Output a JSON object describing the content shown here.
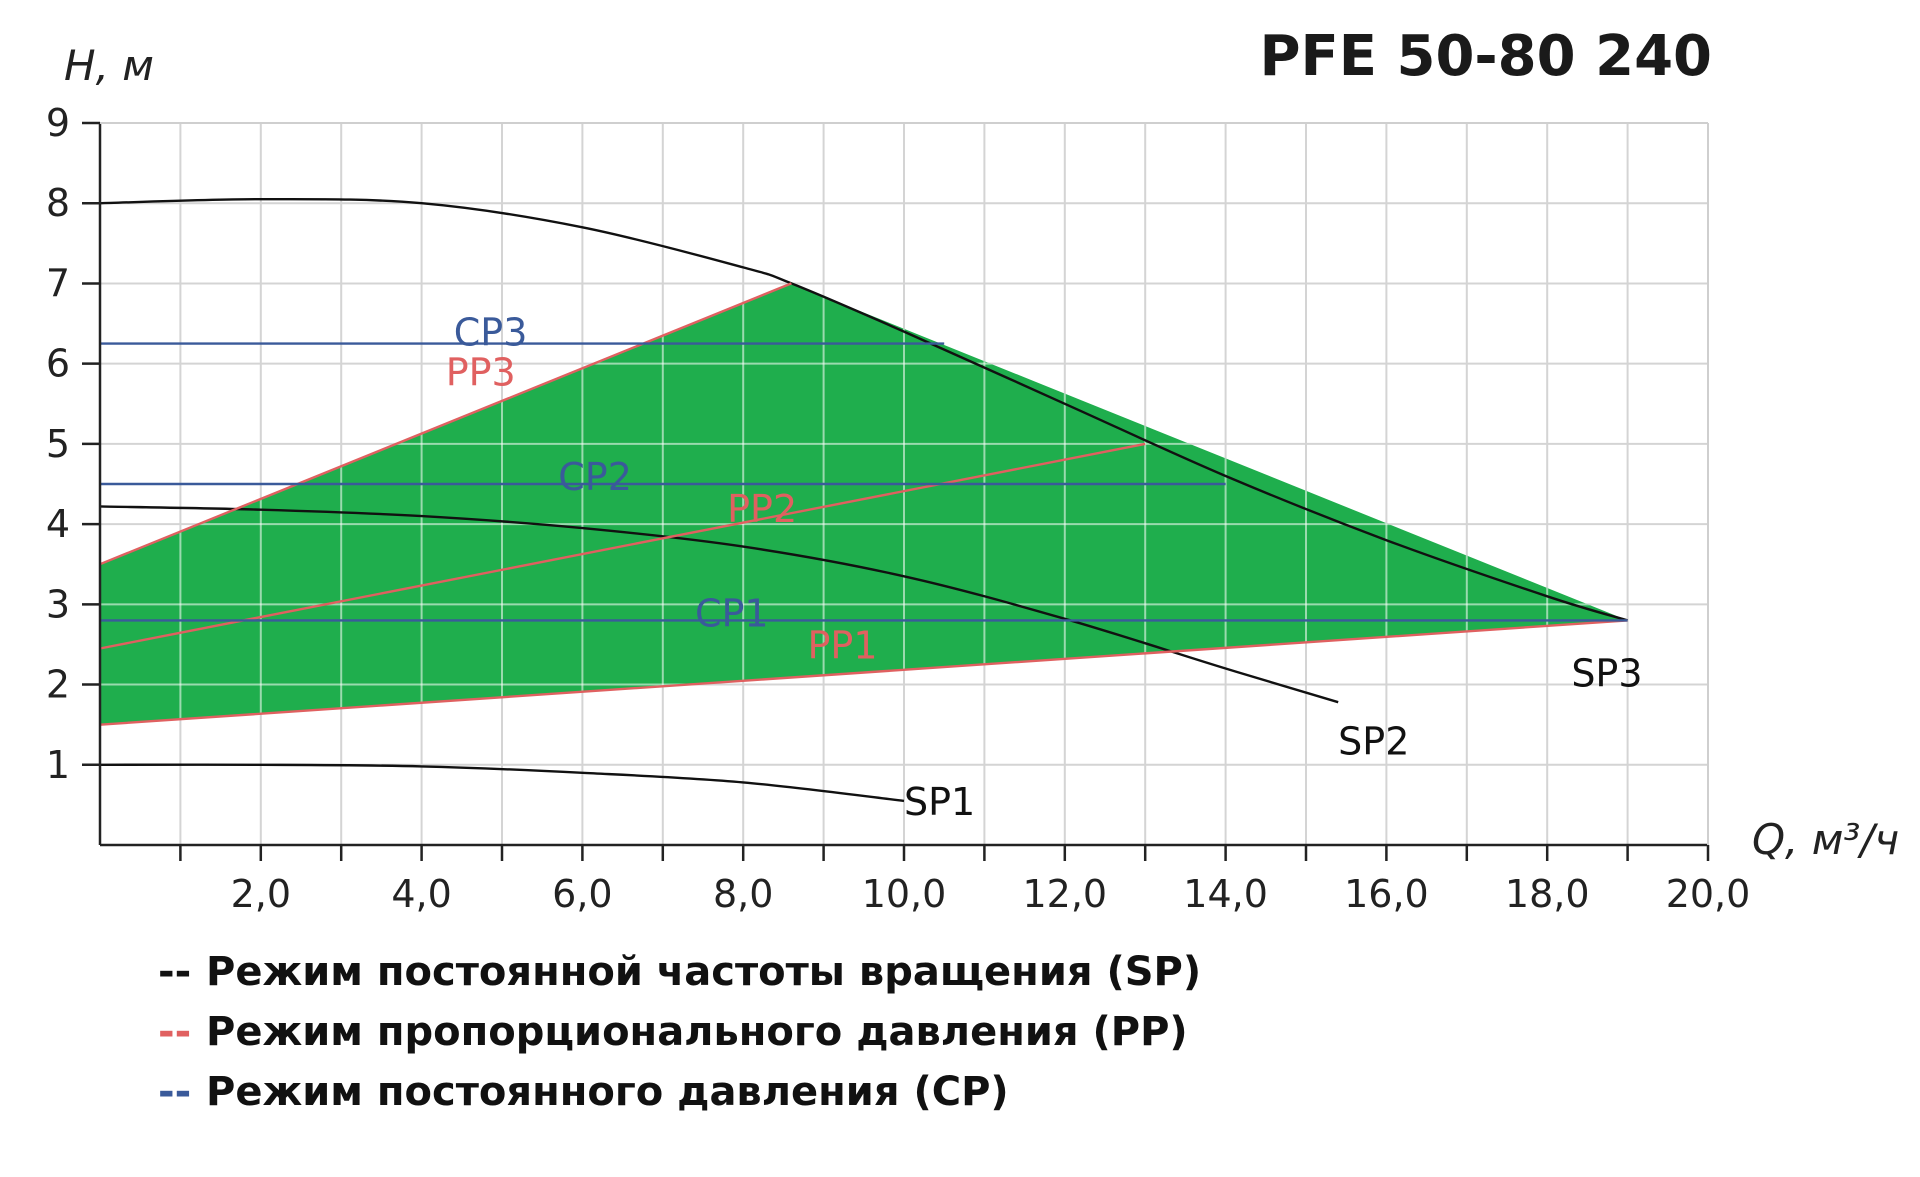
{
  "chart_data": {
    "type": "line",
    "title": "PFE 50-80 240",
    "ylabel": "H, м",
    "xlabel": "Q, м³/ч",
    "xlim": [
      0,
      20
    ],
    "ylim": [
      0,
      9
    ],
    "x_ticks": [
      "2,0",
      "4,0",
      "6,0",
      "8,0",
      "10,0",
      "12,0",
      "14,0",
      "16,0",
      "18,0",
      "20,0"
    ],
    "y_ticks": [
      "1",
      "2",
      "3",
      "4",
      "5",
      "6",
      "7",
      "8",
      "9"
    ],
    "grid": true,
    "colors": {
      "sp": "#111111",
      "pp": "#e06060",
      "cp": "#3a5a9a",
      "fill": "#1fae4d",
      "grid": "#d4d4d4"
    },
    "operating_area": {
      "x": [
        0,
        8.6,
        19.0,
        0
      ],
      "y": [
        3.5,
        7.0,
        2.8,
        1.5
      ]
    },
    "series": [
      {
        "name": "SP1",
        "mode": "SP",
        "x": [
          0,
          2,
          4,
          6,
          8,
          10
        ],
        "y": [
          1.0,
          1.0,
          0.98,
          0.9,
          0.78,
          0.55
        ]
      },
      {
        "name": "SP2",
        "mode": "SP",
        "x": [
          0,
          2,
          4,
          6,
          8,
          10,
          12,
          14,
          15.4
        ],
        "y": [
          4.22,
          4.18,
          4.1,
          3.95,
          3.72,
          3.35,
          2.82,
          2.2,
          1.78
        ]
      },
      {
        "name": "SP3",
        "mode": "SP",
        "x": [
          0,
          2,
          4,
          6,
          8,
          8.6,
          10,
          12,
          14,
          16,
          18,
          19.0
        ],
        "y": [
          8.0,
          8.05,
          8.0,
          7.7,
          7.2,
          7.0,
          6.4,
          5.5,
          4.6,
          3.8,
          3.1,
          2.8
        ]
      },
      {
        "name": "PP1",
        "mode": "PP",
        "x": [
          0,
          19.0
        ],
        "y": [
          1.5,
          2.8
        ]
      },
      {
        "name": "PP2",
        "mode": "PP",
        "x": [
          0,
          13.0
        ],
        "y": [
          2.45,
          5.0
        ]
      },
      {
        "name": "PP3",
        "mode": "PP",
        "x": [
          0,
          8.6
        ],
        "y": [
          3.5,
          7.0
        ]
      },
      {
        "name": "CP1",
        "mode": "CP",
        "x": [
          0,
          19.0
        ],
        "y": [
          2.8,
          2.8
        ]
      },
      {
        "name": "CP2",
        "mode": "CP",
        "x": [
          0,
          14.0
        ],
        "y": [
          4.5,
          4.5
        ]
      },
      {
        "name": "CP3",
        "mode": "CP",
        "x": [
          0,
          10.5
        ],
        "y": [
          6.25,
          6.25
        ]
      }
    ],
    "labels": [
      {
        "text": "SP1",
        "mode": "SP",
        "x": 10.0,
        "y": 0.55
      },
      {
        "text": "SP2",
        "mode": "SP",
        "x": 15.4,
        "y": 1.3
      },
      {
        "text": "SP3",
        "mode": "SP",
        "x": 18.3,
        "y": 2.15
      },
      {
        "text": "PP1",
        "mode": "PP",
        "x": 8.8,
        "y": 2.5
      },
      {
        "text": "PP2",
        "mode": "PP",
        "x": 7.8,
        "y": 4.2
      },
      {
        "text": "PP3",
        "mode": "PP",
        "x": 4.3,
        "y": 5.9
      },
      {
        "text": "CP1",
        "mode": "CP",
        "x": 7.4,
        "y": 2.9
      },
      {
        "text": "CP2",
        "mode": "CP",
        "x": 5.7,
        "y": 4.6
      },
      {
        "text": "CP3",
        "mode": "CP",
        "x": 4.4,
        "y": 6.4
      }
    ],
    "legend": [
      {
        "dash": "--",
        "text": "Режим постоянной частоты вращения (SP)",
        "mode": "SP"
      },
      {
        "dash": "--",
        "text": "Режим пропорционального давления (PP)",
        "mode": "PP"
      },
      {
        "dash": "--",
        "text": "Режим постоянного давления (CP)",
        "mode": "CP"
      }
    ]
  }
}
